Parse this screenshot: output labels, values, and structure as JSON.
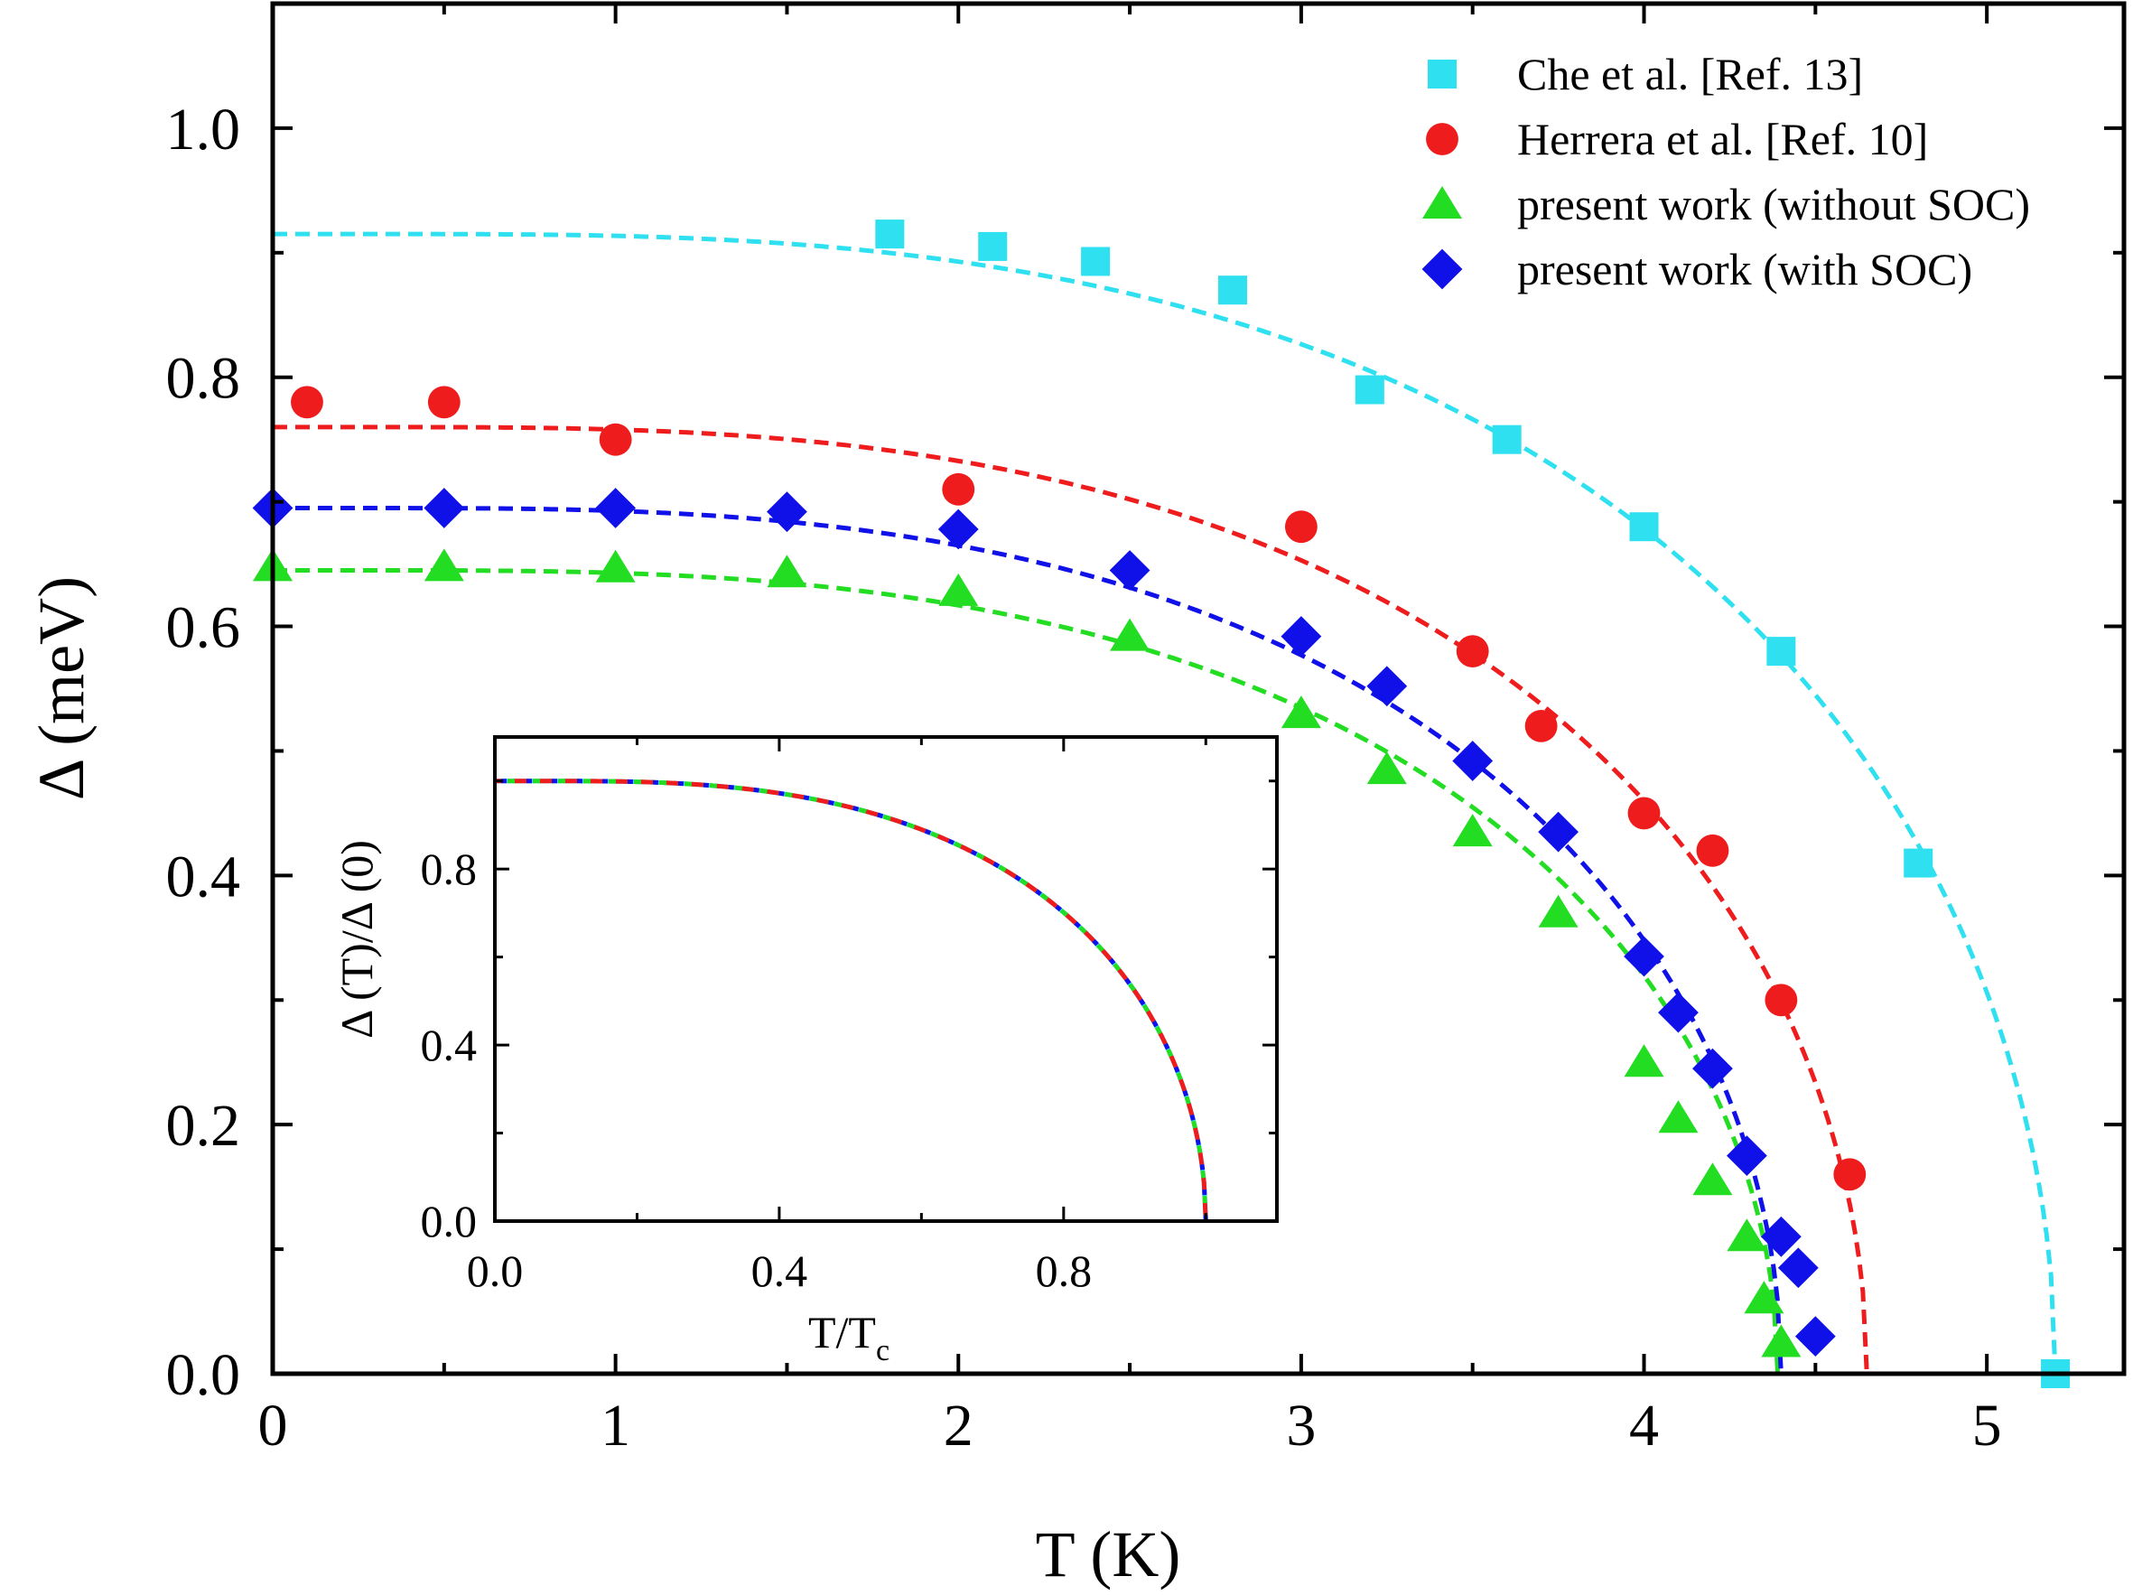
{
  "chart_data": {
    "type": "scatter",
    "main": {
      "xlabel": "T (K)",
      "ylabel": "Δ (meV)",
      "xlim": [
        0,
        5.4
      ],
      "ylim": [
        0,
        1.1
      ],
      "xticks": [
        0,
        1,
        2,
        3,
        4,
        5
      ],
      "xtick_labels": [
        "0",
        "1",
        "2",
        "3",
        "4",
        "5"
      ],
      "yticks": [
        0.0,
        0.2,
        0.4,
        0.6,
        0.8,
        1.0
      ],
      "ytick_labels": [
        "0.0",
        "0.2",
        "0.4",
        "0.6",
        "0.8",
        "1.0"
      ],
      "legend_position": "top-right",
      "series": [
        {
          "name": "Che et al. [Ref. 13]",
          "marker": "square",
          "color": "#2ee0f0",
          "points": [
            [
              1.8,
              0.915
            ],
            [
              2.1,
              0.905
            ],
            [
              2.4,
              0.893
            ],
            [
              2.8,
              0.87
            ],
            [
              3.2,
              0.79
            ],
            [
              3.6,
              0.75
            ],
            [
              4.0,
              0.68
            ],
            [
              4.4,
              0.58
            ],
            [
              4.8,
              0.41
            ],
            [
              5.2,
              0.0
            ]
          ],
          "fit": {
            "delta0": 0.915,
            "tc": 5.2
          }
        },
        {
          "name": "Herrera et al. [Ref. 10]",
          "marker": "circle",
          "color": "#ee1c1c",
          "points": [
            [
              0.1,
              0.78
            ],
            [
              0.5,
              0.78
            ],
            [
              1.0,
              0.75
            ],
            [
              2.0,
              0.71
            ],
            [
              3.0,
              0.68
            ],
            [
              3.5,
              0.58
            ],
            [
              3.7,
              0.52
            ],
            [
              4.0,
              0.45
            ],
            [
              4.2,
              0.42
            ],
            [
              4.4,
              0.3
            ],
            [
              4.6,
              0.16
            ]
          ],
          "fit": {
            "delta0": 0.76,
            "tc": 4.65
          }
        },
        {
          "name": "present work (without SOC)",
          "marker": "triangle",
          "color": "#22dd22",
          "points": [
            [
              0.0,
              0.648
            ],
            [
              0.5,
              0.648
            ],
            [
              1.0,
              0.647
            ],
            [
              1.5,
              0.643
            ],
            [
              2.0,
              0.628
            ],
            [
              2.5,
              0.592
            ],
            [
              3.0,
              0.53
            ],
            [
              3.25,
              0.485
            ],
            [
              3.5,
              0.435
            ],
            [
              3.75,
              0.37
            ],
            [
              4.0,
              0.25
            ],
            [
              4.1,
              0.205
            ],
            [
              4.2,
              0.155
            ],
            [
              4.3,
              0.11
            ],
            [
              4.35,
              0.06
            ],
            [
              4.4,
              0.025
            ]
          ],
          "fit": {
            "delta0": 0.645,
            "tc": 4.39
          }
        },
        {
          "name": "present work (with SOC)",
          "marker": "diamond",
          "color": "#1010e8",
          "points": [
            [
              0.0,
              0.695
            ],
            [
              0.5,
              0.695
            ],
            [
              1.0,
              0.695
            ],
            [
              1.5,
              0.692
            ],
            [
              2.0,
              0.678
            ],
            [
              2.5,
              0.645
            ],
            [
              3.0,
              0.592
            ],
            [
              3.25,
              0.552
            ],
            [
              3.5,
              0.492
            ],
            [
              3.75,
              0.435
            ],
            [
              4.0,
              0.335
            ],
            [
              4.1,
              0.29
            ],
            [
              4.2,
              0.245
            ],
            [
              4.3,
              0.175
            ],
            [
              4.4,
              0.11
            ],
            [
              4.45,
              0.085
            ],
            [
              4.5,
              0.03
            ]
          ],
          "fit": {
            "delta0": 0.695,
            "tc": 4.4
          }
        }
      ]
    },
    "inset": {
      "type": "line",
      "xlabel_main": "T/T",
      "xlabel_sub": "c",
      "ylabel": "Δ (T)/Δ (0)",
      "xlim": [
        0,
        1.1
      ],
      "ylim": [
        0,
        1.1
      ],
      "xticks": [
        0.0,
        0.4,
        0.8
      ],
      "xtick_labels": [
        "0.0",
        "0.4",
        "0.8"
      ],
      "yticks": [
        0.0,
        0.4,
        0.8
      ],
      "ytick_labels": [
        "0.0",
        "0.4",
        "0.8"
      ],
      "curve": "normalized BCS gap, identical for all four data sets",
      "line_colors": [
        "#2ee0f0",
        "#ee1c1c",
        "#22dd22",
        "#1010e8"
      ]
    }
  }
}
